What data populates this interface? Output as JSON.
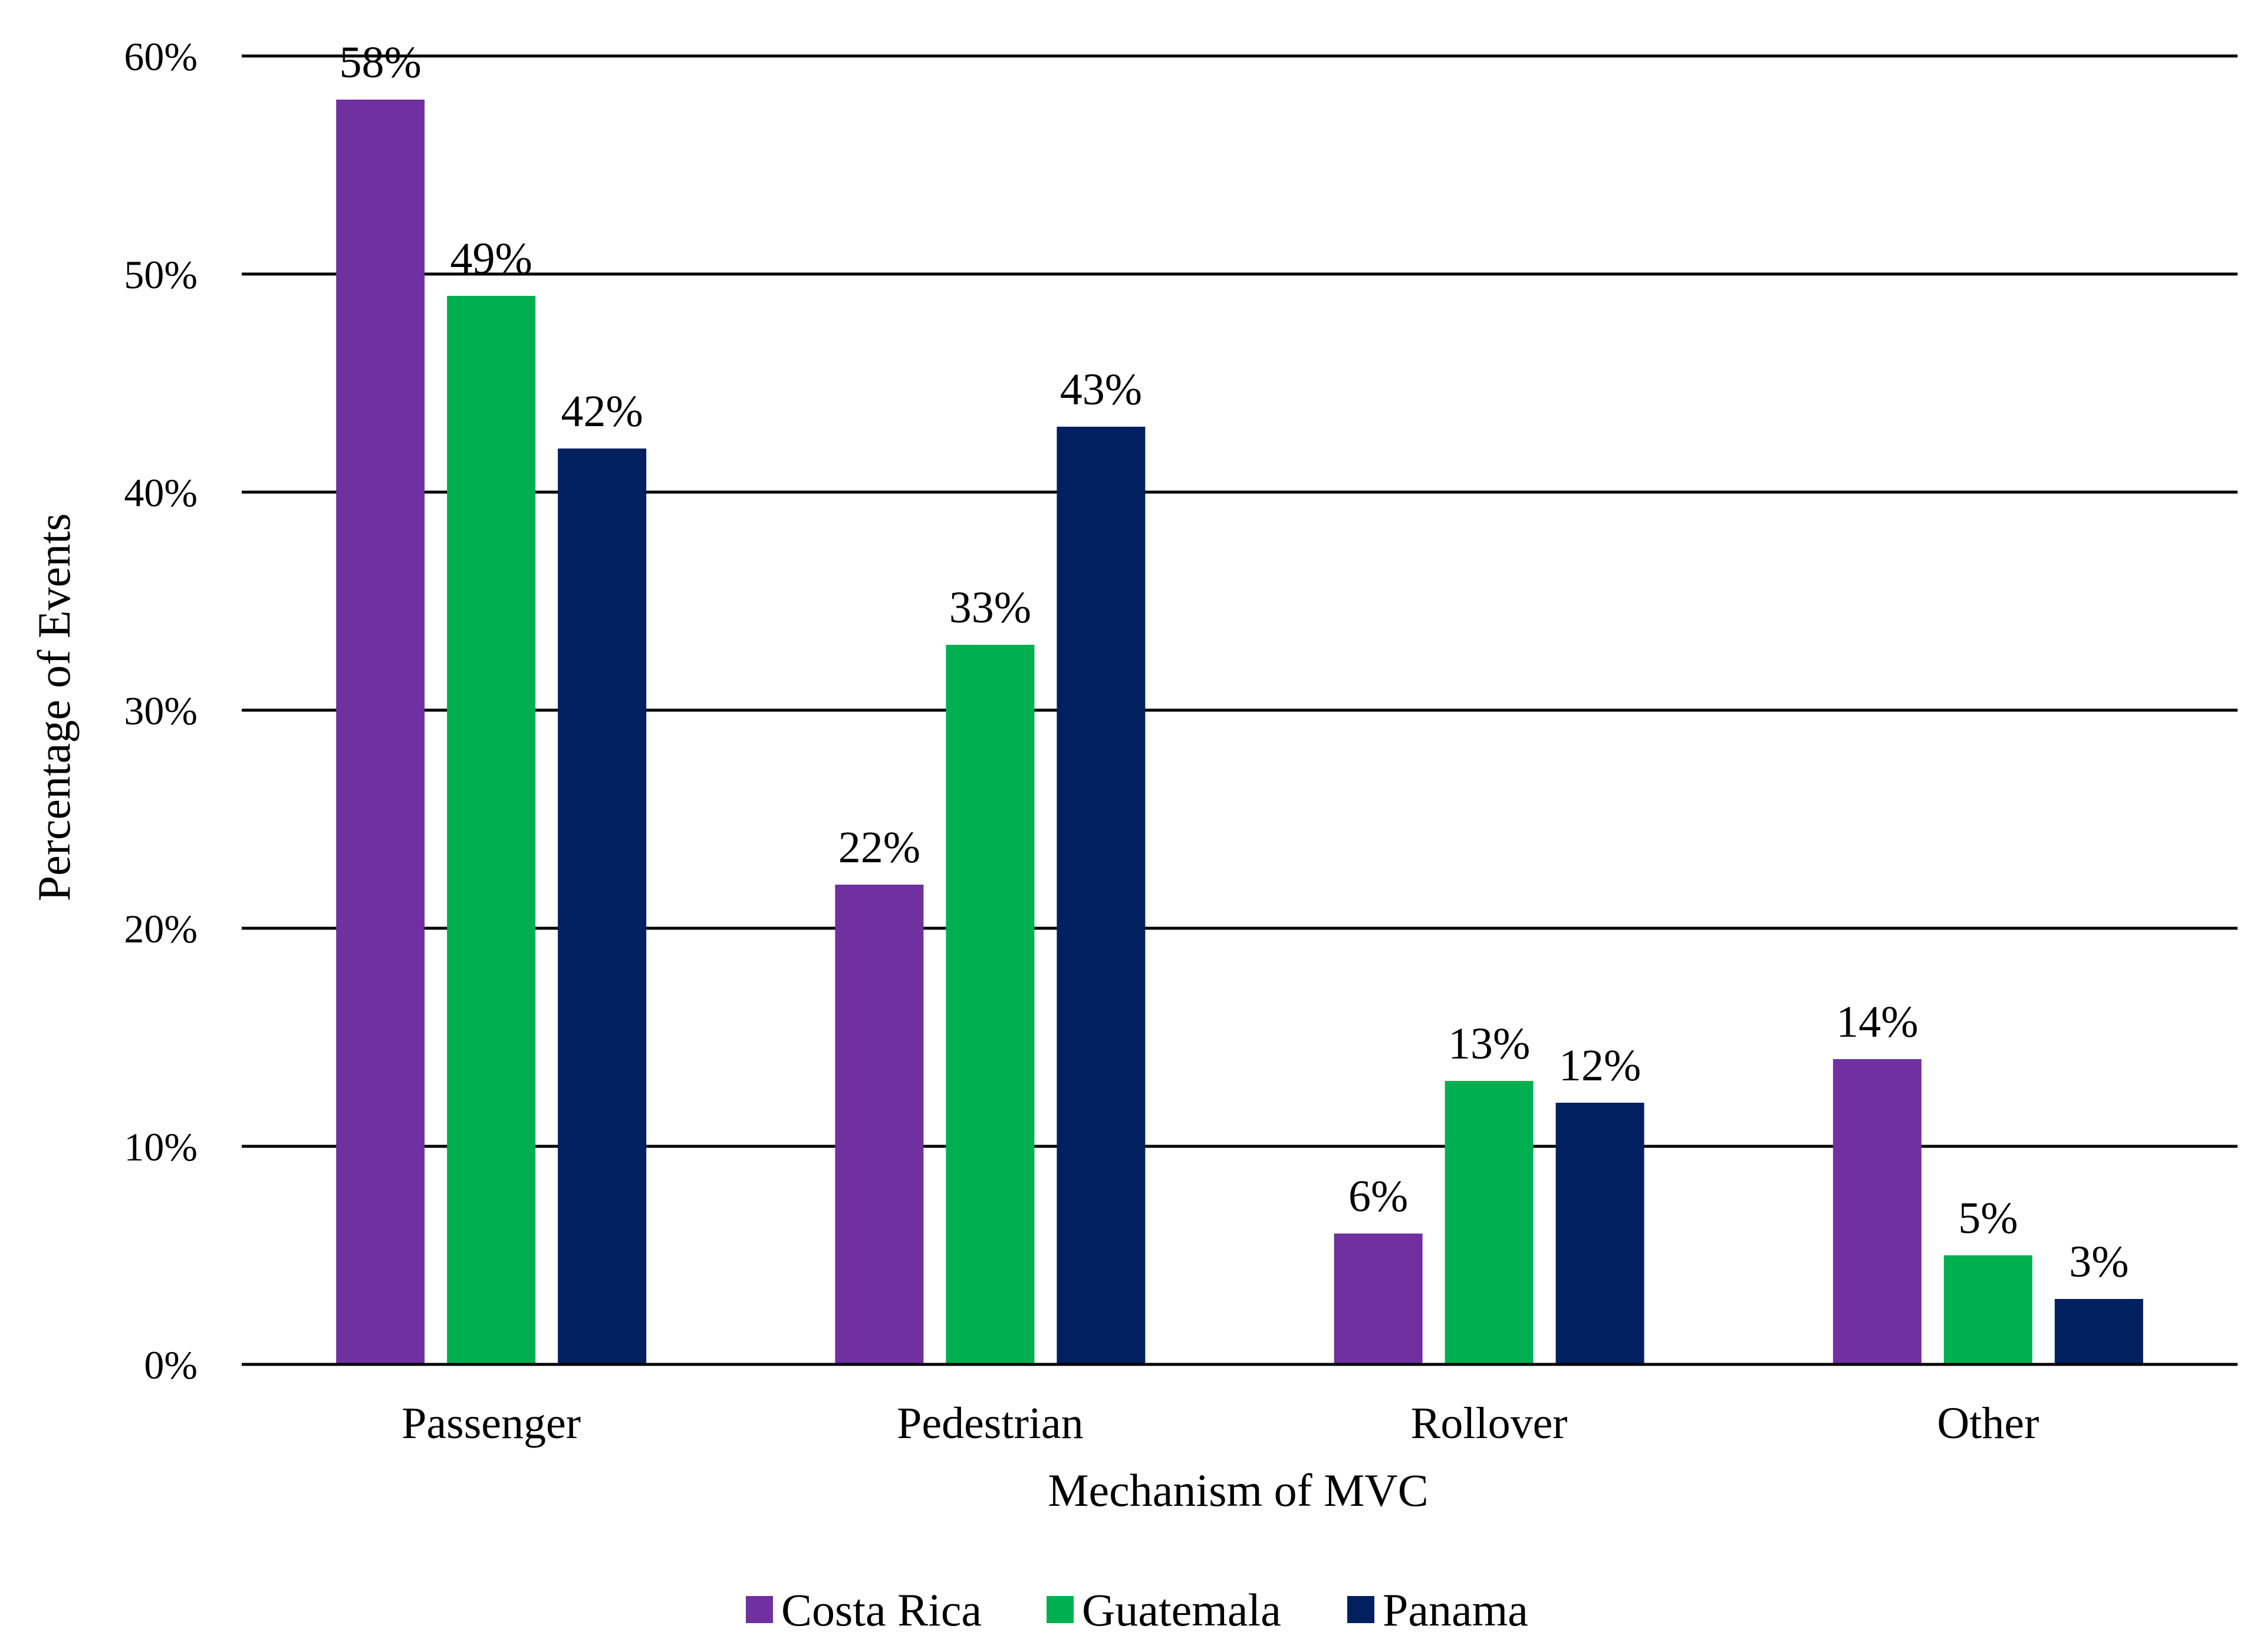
{
  "chart_data": {
    "type": "bar",
    "title": "",
    "xlabel": "Mechanism of MVC",
    "ylabel": "Percentage of Events",
    "categories": [
      "Passenger",
      "Pedestrian",
      "Rollover",
      "Other"
    ],
    "series": [
      {
        "name": "Costa Rica",
        "color": "#7030A0",
        "values": [
          58,
          22,
          6,
          14
        ],
        "labels": [
          "58%",
          "22%",
          "6%",
          "14%"
        ]
      },
      {
        "name": "Guatemala",
        "color": "#00B050",
        "values": [
          49,
          33,
          13,
          5
        ],
        "labels": [
          "49%",
          "33%",
          "13%",
          "5%"
        ]
      },
      {
        "name": "Panama",
        "color": "#002060",
        "values": [
          42,
          43,
          12,
          3
        ],
        "labels": [
          "42%",
          "43%",
          "12%",
          "3%"
        ]
      }
    ],
    "ylim": [
      0,
      60
    ],
    "yticks": [
      0,
      10,
      20,
      30,
      40,
      50,
      60
    ],
    "ytick_labels": [
      "0%",
      "10%",
      "20%",
      "30%",
      "40%",
      "50%",
      "60%"
    ],
    "grid": true,
    "legend_position": "bottom-center"
  }
}
